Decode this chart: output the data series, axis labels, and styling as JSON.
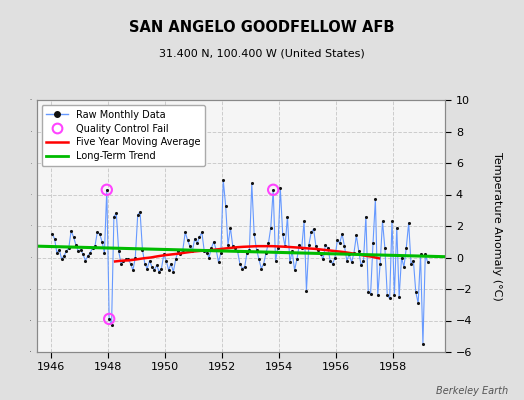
{
  "title": "SAN ANGELO GOODFELLOW AFB",
  "subtitle": "31.400 N, 100.400 W (United States)",
  "ylabel": "Temperature Anomaly (°C)",
  "credit": "Berkeley Earth",
  "xlim": [
    1945.5,
    1959.83
  ],
  "ylim": [
    -6,
    10
  ],
  "yticks": [
    -6,
    -4,
    -2,
    0,
    2,
    4,
    6,
    8,
    10
  ],
  "xticks": [
    1946,
    1948,
    1950,
    1952,
    1954,
    1956,
    1958
  ],
  "bg_color": "#e0e0e0",
  "plot_bg_color": "#f5f5f5",
  "raw_color": "#6699ff",
  "dot_color": "#111111",
  "ma_color": "#ff0000",
  "trend_color": "#00bb00",
  "qc_color": "#ff44ff",
  "raw_data": [
    [
      1946.042,
      1.5
    ],
    [
      1946.125,
      1.2
    ],
    [
      1946.208,
      0.3
    ],
    [
      1946.292,
      0.5
    ],
    [
      1946.375,
      -0.1
    ],
    [
      1946.458,
      0.1
    ],
    [
      1946.542,
      0.4
    ],
    [
      1946.625,
      0.6
    ],
    [
      1946.708,
      1.7
    ],
    [
      1946.792,
      1.3
    ],
    [
      1946.875,
      0.8
    ],
    [
      1946.958,
      0.4
    ],
    [
      1947.042,
      0.5
    ],
    [
      1947.125,
      0.2
    ],
    [
      1947.208,
      -0.2
    ],
    [
      1947.292,
      0.1
    ],
    [
      1947.375,
      0.3
    ],
    [
      1947.458,
      0.6
    ],
    [
      1947.542,
      0.7
    ],
    [
      1947.625,
      1.6
    ],
    [
      1947.708,
      1.5
    ],
    [
      1947.792,
      1.0
    ],
    [
      1947.875,
      0.3
    ],
    [
      1947.958,
      4.3
    ],
    [
      1948.042,
      -3.9
    ],
    [
      1948.125,
      -4.3
    ],
    [
      1948.208,
      2.6
    ],
    [
      1948.292,
      2.8
    ],
    [
      1948.375,
      0.4
    ],
    [
      1948.458,
      -0.4
    ],
    [
      1948.542,
      -0.2
    ],
    [
      1948.625,
      -0.1
    ],
    [
      1948.708,
      -0.1
    ],
    [
      1948.792,
      -0.4
    ],
    [
      1948.875,
      -0.8
    ],
    [
      1948.958,
      0.0
    ],
    [
      1949.042,
      2.7
    ],
    [
      1949.125,
      2.9
    ],
    [
      1949.208,
      0.5
    ],
    [
      1949.292,
      -0.4
    ],
    [
      1949.375,
      -0.7
    ],
    [
      1949.458,
      -0.2
    ],
    [
      1949.542,
      -0.6
    ],
    [
      1949.625,
      -0.8
    ],
    [
      1949.708,
      -0.5
    ],
    [
      1949.792,
      -0.9
    ],
    [
      1949.875,
      -0.7
    ],
    [
      1949.958,
      0.2
    ],
    [
      1950.042,
      -0.2
    ],
    [
      1950.125,
      -0.8
    ],
    [
      1950.208,
      -0.4
    ],
    [
      1950.292,
      -0.9
    ],
    [
      1950.375,
      -0.1
    ],
    [
      1950.458,
      0.4
    ],
    [
      1950.542,
      0.2
    ],
    [
      1950.625,
      0.5
    ],
    [
      1950.708,
      1.6
    ],
    [
      1950.792,
      1.1
    ],
    [
      1950.875,
      0.7
    ],
    [
      1950.958,
      0.4
    ],
    [
      1951.042,
      1.2
    ],
    [
      1951.125,
      0.9
    ],
    [
      1951.208,
      1.3
    ],
    [
      1951.292,
      1.6
    ],
    [
      1951.375,
      0.4
    ],
    [
      1951.458,
      0.3
    ],
    [
      1951.542,
      0.0
    ],
    [
      1951.625,
      0.6
    ],
    [
      1951.708,
      1.0
    ],
    [
      1951.792,
      0.5
    ],
    [
      1951.875,
      -0.3
    ],
    [
      1951.958,
      0.3
    ],
    [
      1952.042,
      4.9
    ],
    [
      1952.125,
      3.3
    ],
    [
      1952.208,
      0.8
    ],
    [
      1952.292,
      1.9
    ],
    [
      1952.375,
      0.7
    ],
    [
      1952.458,
      0.6
    ],
    [
      1952.542,
      0.4
    ],
    [
      1952.625,
      -0.4
    ],
    [
      1952.708,
      -0.7
    ],
    [
      1952.792,
      -0.6
    ],
    [
      1952.875,
      0.3
    ],
    [
      1952.958,
      0.5
    ],
    [
      1953.042,
      4.7
    ],
    [
      1953.125,
      1.5
    ],
    [
      1953.208,
      0.5
    ],
    [
      1953.292,
      -0.1
    ],
    [
      1953.375,
      -0.7
    ],
    [
      1953.458,
      -0.4
    ],
    [
      1953.542,
      0.3
    ],
    [
      1953.625,
      0.9
    ],
    [
      1953.708,
      1.9
    ],
    [
      1953.792,
      4.3
    ],
    [
      1953.875,
      -0.2
    ],
    [
      1953.958,
      0.6
    ],
    [
      1954.042,
      4.4
    ],
    [
      1954.125,
      1.5
    ],
    [
      1954.208,
      0.7
    ],
    [
      1954.292,
      2.6
    ],
    [
      1954.375,
      -0.3
    ],
    [
      1954.458,
      0.4
    ],
    [
      1954.542,
      -0.8
    ],
    [
      1954.625,
      -0.1
    ],
    [
      1954.708,
      0.8
    ],
    [
      1954.792,
      0.6
    ],
    [
      1954.875,
      2.3
    ],
    [
      1954.958,
      -2.1
    ],
    [
      1955.042,
      0.8
    ],
    [
      1955.125,
      1.6
    ],
    [
      1955.208,
      1.8
    ],
    [
      1955.292,
      0.7
    ],
    [
      1955.375,
      0.5
    ],
    [
      1955.458,
      0.2
    ],
    [
      1955.542,
      -0.1
    ],
    [
      1955.625,
      0.8
    ],
    [
      1955.708,
      0.6
    ],
    [
      1955.792,
      -0.2
    ],
    [
      1955.875,
      -0.4
    ],
    [
      1955.958,
      0.0
    ],
    [
      1956.042,
      1.1
    ],
    [
      1956.125,
      0.9
    ],
    [
      1956.208,
      1.5
    ],
    [
      1956.292,
      0.7
    ],
    [
      1956.375,
      -0.2
    ],
    [
      1956.458,
      0.2
    ],
    [
      1956.542,
      -0.3
    ],
    [
      1956.625,
      0.3
    ],
    [
      1956.708,
      1.4
    ],
    [
      1956.792,
      0.4
    ],
    [
      1956.875,
      -0.5
    ],
    [
      1956.958,
      -0.2
    ],
    [
      1957.042,
      2.6
    ],
    [
      1957.125,
      -2.2
    ],
    [
      1957.208,
      -2.3
    ],
    [
      1957.292,
      0.9
    ],
    [
      1957.375,
      3.7
    ],
    [
      1957.458,
      -2.4
    ],
    [
      1957.542,
      -0.4
    ],
    [
      1957.625,
      2.3
    ],
    [
      1957.708,
      0.6
    ],
    [
      1957.792,
      -2.4
    ],
    [
      1957.875,
      -2.6
    ],
    [
      1957.958,
      2.3
    ],
    [
      1958.042,
      -2.4
    ],
    [
      1958.125,
      1.9
    ],
    [
      1958.208,
      -2.5
    ],
    [
      1958.292,
      0.0
    ],
    [
      1958.375,
      -0.6
    ],
    [
      1958.458,
      0.6
    ],
    [
      1958.542,
      2.2
    ],
    [
      1958.625,
      -0.4
    ],
    [
      1958.708,
      -0.2
    ],
    [
      1958.792,
      -2.2
    ],
    [
      1958.875,
      -2.9
    ],
    [
      1958.958,
      0.2
    ],
    [
      1959.042,
      -5.5
    ],
    [
      1959.125,
      0.2
    ],
    [
      1959.208,
      -0.3
    ]
  ],
  "qc_fail_points": [
    [
      1947.958,
      4.3
    ],
    [
      1948.042,
      -3.9
    ],
    [
      1953.792,
      4.3
    ]
  ],
  "moving_avg": [
    [
      1948.25,
      -0.25
    ],
    [
      1948.5,
      -0.2
    ],
    [
      1948.75,
      -0.18
    ],
    [
      1949.0,
      -0.12
    ],
    [
      1949.25,
      -0.05
    ],
    [
      1949.5,
      0.0
    ],
    [
      1949.75,
      0.08
    ],
    [
      1950.0,
      0.15
    ],
    [
      1950.25,
      0.2
    ],
    [
      1950.5,
      0.25
    ],
    [
      1950.75,
      0.32
    ],
    [
      1951.0,
      0.38
    ],
    [
      1951.25,
      0.42
    ],
    [
      1951.5,
      0.45
    ],
    [
      1951.75,
      0.5
    ],
    [
      1952.0,
      0.55
    ],
    [
      1952.25,
      0.6
    ],
    [
      1952.5,
      0.65
    ],
    [
      1952.75,
      0.68
    ],
    [
      1953.0,
      0.7
    ],
    [
      1953.25,
      0.72
    ],
    [
      1953.5,
      0.72
    ],
    [
      1953.75,
      0.72
    ],
    [
      1954.0,
      0.7
    ],
    [
      1954.25,
      0.68
    ],
    [
      1954.5,
      0.65
    ],
    [
      1954.75,
      0.62
    ],
    [
      1955.0,
      0.58
    ],
    [
      1955.25,
      0.55
    ],
    [
      1955.5,
      0.5
    ],
    [
      1955.75,
      0.45
    ],
    [
      1956.0,
      0.4
    ],
    [
      1956.25,
      0.35
    ],
    [
      1956.5,
      0.28
    ],
    [
      1956.75,
      0.2
    ],
    [
      1957.0,
      0.12
    ],
    [
      1957.25,
      0.05
    ],
    [
      1957.5,
      -0.05
    ]
  ],
  "trend_x": [
    1945.5,
    1959.83
  ],
  "trend_y": [
    0.72,
    0.05
  ]
}
